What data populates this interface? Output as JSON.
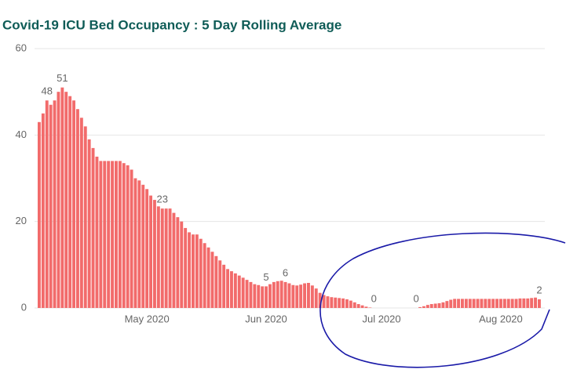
{
  "chart_data": {
    "type": "bar",
    "title": "Covid-19 ICU Bed Occupancy : 5 Day Rolling Average",
    "color": "#f26b6b",
    "ylim": [
      0,
      60
    ],
    "yticks": [
      0,
      20,
      40,
      60
    ],
    "grid": true,
    "categories": [
      null,
      null,
      null,
      null,
      null,
      null,
      null,
      null,
      null,
      null,
      null,
      null,
      null,
      null,
      null,
      null,
      null,
      null,
      null,
      null,
      null,
      null,
      null,
      null,
      null,
      null,
      null,
      null,
      "May 2020",
      null,
      null,
      null,
      null,
      null,
      null,
      null,
      null,
      null,
      null,
      null,
      null,
      null,
      null,
      null,
      null,
      null,
      null,
      null,
      null,
      null,
      null,
      null,
      null,
      null,
      null,
      null,
      null,
      null,
      null,
      "Jun 2020",
      null,
      null,
      null,
      null,
      null,
      null,
      null,
      null,
      null,
      null,
      null,
      null,
      null,
      null,
      null,
      null,
      null,
      null,
      null,
      null,
      null,
      null,
      null,
      null,
      null,
      null,
      null,
      null,
      null,
      "Jul 2020",
      null,
      null,
      null,
      null,
      null,
      null,
      null,
      null,
      null,
      null,
      null,
      null,
      null,
      null,
      null,
      null,
      null,
      null,
      null,
      null,
      null,
      null,
      null,
      null,
      null,
      null,
      null,
      null,
      null,
      null,
      "Aug 2020",
      null,
      null,
      null,
      null,
      null,
      null,
      null,
      null,
      null,
      null
    ],
    "values": [
      43,
      45,
      48,
      47,
      48,
      50,
      51,
      50,
      49,
      48,
      46,
      44,
      42,
      39,
      37,
      35,
      34,
      34,
      34,
      34,
      34,
      34,
      33.5,
      33,
      32,
      30,
      29.5,
      28.5,
      27.5,
      26,
      25,
      23.5,
      23,
      23,
      23,
      22,
      21,
      20,
      18.5,
      17.5,
      17,
      17,
      16,
      15,
      14,
      13,
      12,
      11,
      10,
      9,
      8.5,
      8,
      7.5,
      7,
      6.5,
      6,
      5.5,
      5.3,
      5,
      5,
      5.5,
      6,
      6.2,
      6.3,
      6,
      5.7,
      5.3,
      5.2,
      5.4,
      5.7,
      5.8,
      5.2,
      4.5,
      3.5,
      3,
      2.7,
      2.5,
      2.4,
      2.3,
      2.2,
      2,
      1.7,
      1.3,
      0.9,
      0.6,
      0.3,
      0.1,
      0,
      0,
      0,
      0,
      0,
      0,
      0,
      0,
      0,
      0,
      0,
      0,
      0.2,
      0.4,
      0.7,
      0.9,
      1,
      1.1,
      1.3,
      1.6,
      1.9,
      2.1,
      2.1,
      2.1,
      2.1,
      2.1,
      2.1,
      2.1,
      2.1,
      2.1,
      2.1,
      2.1,
      2.1,
      2.1,
      2.1,
      2.1,
      2.1,
      2.1,
      2.2,
      2.2,
      2.2,
      2.3,
      2.4,
      2
    ],
    "value_labels": [
      null,
      null,
      "48",
      null,
      null,
      null,
      "51",
      null,
      null,
      null,
      null,
      null,
      null,
      null,
      null,
      null,
      null,
      null,
      null,
      null,
      null,
      null,
      null,
      null,
      null,
      null,
      null,
      null,
      null,
      null,
      null,
      null,
      "23",
      null,
      null,
      null,
      null,
      null,
      null,
      null,
      null,
      null,
      null,
      null,
      null,
      null,
      null,
      null,
      null,
      null,
      null,
      null,
      null,
      null,
      null,
      null,
      null,
      null,
      null,
      "5",
      null,
      null,
      null,
      null,
      "6",
      null,
      null,
      null,
      null,
      null,
      null,
      null,
      null,
      null,
      null,
      null,
      null,
      null,
      null,
      null,
      null,
      null,
      null,
      null,
      null,
      null,
      null,
      "0",
      null,
      null,
      null,
      null,
      null,
      null,
      null,
      null,
      null,
      null,
      "0",
      null,
      null,
      null,
      null,
      null,
      null,
      null,
      null,
      null,
      null,
      null,
      null,
      null,
      null,
      null,
      null,
      null,
      null,
      null,
      null,
      null,
      null,
      null,
      null,
      null,
      null,
      null,
      null,
      null,
      null,
      null,
      "2"
    ]
  }
}
